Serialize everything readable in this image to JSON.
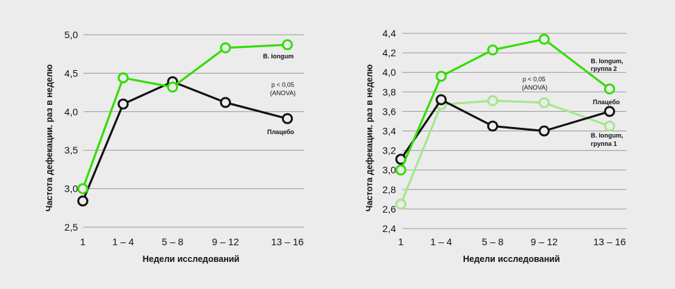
{
  "chart_data": [
    {
      "type": "line",
      "categories": [
        "1",
        "1 – 4",
        "5 – 8",
        "9 – 12",
        "13 – 16"
      ],
      "ylim": [
        2.5,
        5.0
      ],
      "yticks": [
        "2,5",
        "3,0",
        "3,5",
        "4,0",
        "4,5",
        "5,0"
      ],
      "ytick_values": [
        2.5,
        3.0,
        3.5,
        4.0,
        4.5,
        5.0
      ],
      "xlabel": "Недели исследований",
      "ylabel": "Частота дефекации. раз в неделю",
      "grid": true,
      "series": [
        {
          "name": "Плацебо",
          "color": "#111111",
          "values": [
            2.84,
            4.1,
            4.39,
            4.12,
            3.91
          ]
        },
        {
          "name": "B. longum",
          "color": "#33dd00",
          "values": [
            3.0,
            4.44,
            4.32,
            4.83,
            4.87
          ]
        }
      ],
      "annotations": [
        {
          "text": "B. longum"
        },
        {
          "text": "p < 0,05"
        },
        {
          "text": "(ANOVA)"
        },
        {
          "text": "Плацебо"
        }
      ]
    },
    {
      "type": "line",
      "categories": [
        "1",
        "1 – 4",
        "5 – 8",
        "9 – 12",
        "13 – 16"
      ],
      "ylim": [
        2.4,
        4.4
      ],
      "yticks": [
        "2,4",
        "2,6",
        "2,8",
        "3,0",
        "3,2",
        "3,4",
        "3,6",
        "3,8",
        "4,0",
        "4,2",
        "4,4"
      ],
      "ytick_values": [
        2.4,
        2.6,
        2.8,
        3.0,
        3.2,
        3.4,
        3.6,
        3.8,
        4.0,
        4.2,
        4.4
      ],
      "xlabel": "Недели исследований",
      "ylabel": "Частота дефекации. раз в неделю",
      "grid": true,
      "series": [
        {
          "name": "B. longum, группа 1",
          "color": "#a5e68a",
          "values": [
            2.65,
            3.67,
            3.71,
            3.69,
            3.45
          ]
        },
        {
          "name": "Плацебо",
          "color": "#111111",
          "values": [
            3.11,
            3.72,
            3.45,
            3.4,
            3.6
          ]
        },
        {
          "name": "B. longum, группа 2",
          "color": "#33dd00",
          "values": [
            3.0,
            3.96,
            4.23,
            4.34,
            3.83
          ]
        }
      ],
      "annotations": [
        {
          "text": "B. longum,"
        },
        {
          "text": "группа 2"
        },
        {
          "text": "p < 0,05"
        },
        {
          "text": "(ANOVA)"
        },
        {
          "text": "Плацебо"
        },
        {
          "text": "B. longum,"
        },
        {
          "text": "группа 1"
        }
      ]
    }
  ]
}
